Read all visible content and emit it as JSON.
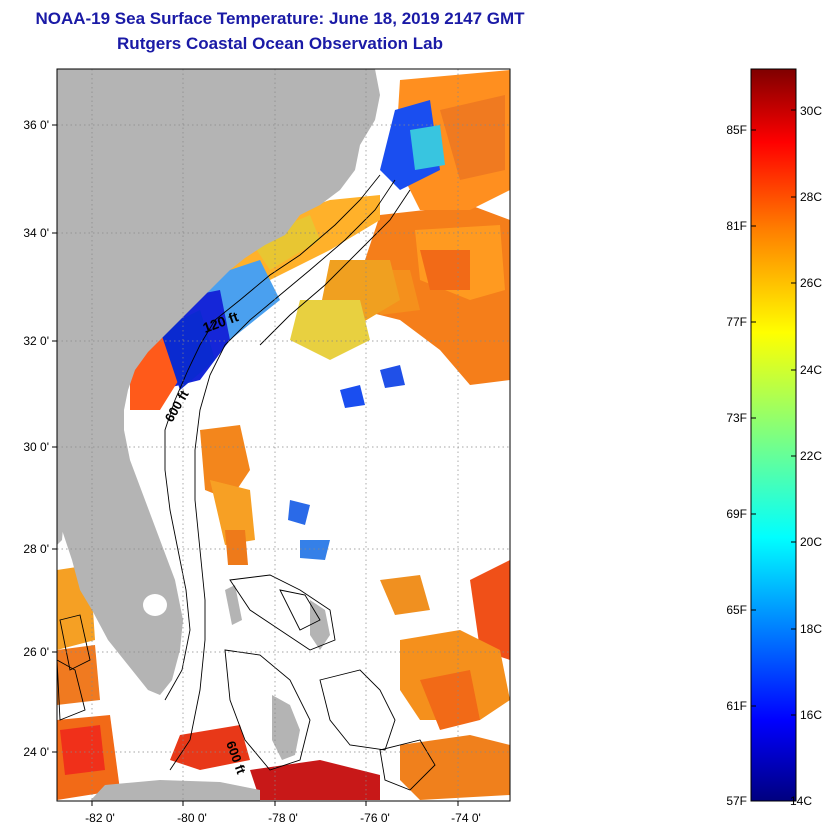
{
  "header": {
    "title": "NOAA-19 Sea Surface Temperature:  June 18, 2019 2147 GMT",
    "subtitle": "Rutgers Coastal Ocean Observation Lab"
  },
  "map": {
    "lat_labels": [
      "36 0'",
      "34 0'",
      "32 0'",
      "30 0'",
      "28 0'",
      "26 0'",
      "24 0'"
    ],
    "lon_labels": [
      "-82 0'",
      "-80 0'",
      "-78 0'",
      "-76 0'",
      "-74 0'"
    ],
    "isobath_labels": [
      "120 ft",
      "600 ft",
      "600 ft"
    ],
    "colors": {
      "land": "#b4b4b4",
      "ocean_nodata": "#ffffff",
      "title": "#1a1aa6"
    }
  },
  "colorbar": {
    "fahrenheit_labels": [
      "85F",
      "81F",
      "77F",
      "73F",
      "69F",
      "65F",
      "61F",
      "57F"
    ],
    "celsius_labels": [
      "30C",
      "28C",
      "26C",
      "24C",
      "22C",
      "20C",
      "18C",
      "16C",
      "14C"
    ],
    "colormap": [
      "#00007f",
      "#0000ff",
      "#007fff",
      "#00ffff",
      "#7fff7f",
      "#ffff00",
      "#ff7f00",
      "#ff0000",
      "#7f0000"
    ]
  }
}
